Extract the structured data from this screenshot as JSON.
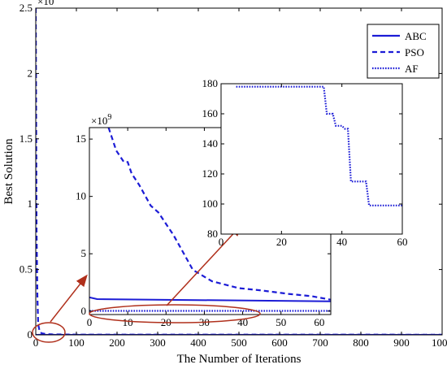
{
  "chart_data": [
    {
      "type": "line",
      "role": "main",
      "xlabel": "The Number of Iterations",
      "ylabel": "Best Solution",
      "exponent_label": "×10",
      "exponent_power": "11",
      "xlim": [
        0,
        1000
      ],
      "ylim": [
        0,
        2.5
      ],
      "x_ticks": [
        "0",
        "100",
        "200",
        "300",
        "400",
        "500",
        "600",
        "700",
        "800",
        "900",
        "1000"
      ],
      "y_ticks": [
        "0",
        "0.5",
        "1",
        "1.5",
        "2",
        "2.5"
      ],
      "legend_position": "top-right",
      "series": [
        {
          "name": "ABC",
          "style": "solid",
          "x": [
            0,
            1000
          ],
          "y": [
            0.0001,
            0.0001
          ]
        },
        {
          "name": "PSO",
          "style": "dashed",
          "x": [
            0,
            2,
            4,
            6,
            10,
            15,
            25,
            40,
            60,
            100,
            1000
          ],
          "y": [
            2.5,
            0.8,
            0.3,
            0.08,
            0.02,
            0.012,
            0.006,
            0.004,
            0.003,
            0.002,
            0.001
          ]
        },
        {
          "name": "AF",
          "style": "dotted",
          "x": [
            0,
            1000
          ],
          "y": [
            2e-08,
            2e-08
          ]
        }
      ]
    },
    {
      "type": "line",
      "role": "inset-1",
      "exponent_label": "×10",
      "exponent_power": "9",
      "xlim": [
        0,
        63
      ],
      "ylim": [
        -0.3,
        16
      ],
      "x_ticks": [
        "0",
        "10",
        "20",
        "30",
        "40",
        "50",
        "60"
      ],
      "y_ticks": [
        "0",
        "5",
        "10",
        "15"
      ],
      "series": [
        {
          "name": "PSO",
          "style": "dashed",
          "x": [
            5,
            7,
            9,
            10,
            11,
            13,
            16,
            18,
            22,
            27,
            32,
            39,
            45,
            52,
            58,
            63
          ],
          "y": [
            16,
            14,
            13,
            13,
            12,
            11,
            9.2,
            8.6,
            6.6,
            3.6,
            2.6,
            2.0,
            1.8,
            1.5,
            1.3,
            1.0
          ]
        },
        {
          "name": "ABC",
          "style": "solid",
          "x": [
            0,
            2,
            63
          ],
          "y": [
            1.2,
            1.05,
            0.85
          ]
        },
        {
          "name": "AF",
          "style": "dotted",
          "x": [
            0,
            63
          ],
          "y": [
            0.02,
            0.02
          ]
        }
      ]
    },
    {
      "type": "line",
      "role": "inset-2",
      "xlim": [
        0,
        60
      ],
      "ylim": [
        80,
        180
      ],
      "x_ticks": [
        "0",
        "20",
        "40",
        "60"
      ],
      "y_ticks": [
        "80",
        "100",
        "120",
        "140",
        "160",
        "180"
      ],
      "series": [
        {
          "name": "AF",
          "style": "dotted",
          "x": [
            5,
            34,
            35,
            37,
            38,
            40,
            41,
            42,
            43,
            46,
            47,
            48,
            49,
            60
          ],
          "y": [
            178,
            178,
            160,
            160,
            152,
            152,
            150,
            150,
            115,
            115,
            115,
            115,
            99,
            99
          ]
        }
      ]
    }
  ],
  "colors": {
    "line": "#1c1cd6",
    "arrow": "#b0301c",
    "axis": "#000000"
  }
}
